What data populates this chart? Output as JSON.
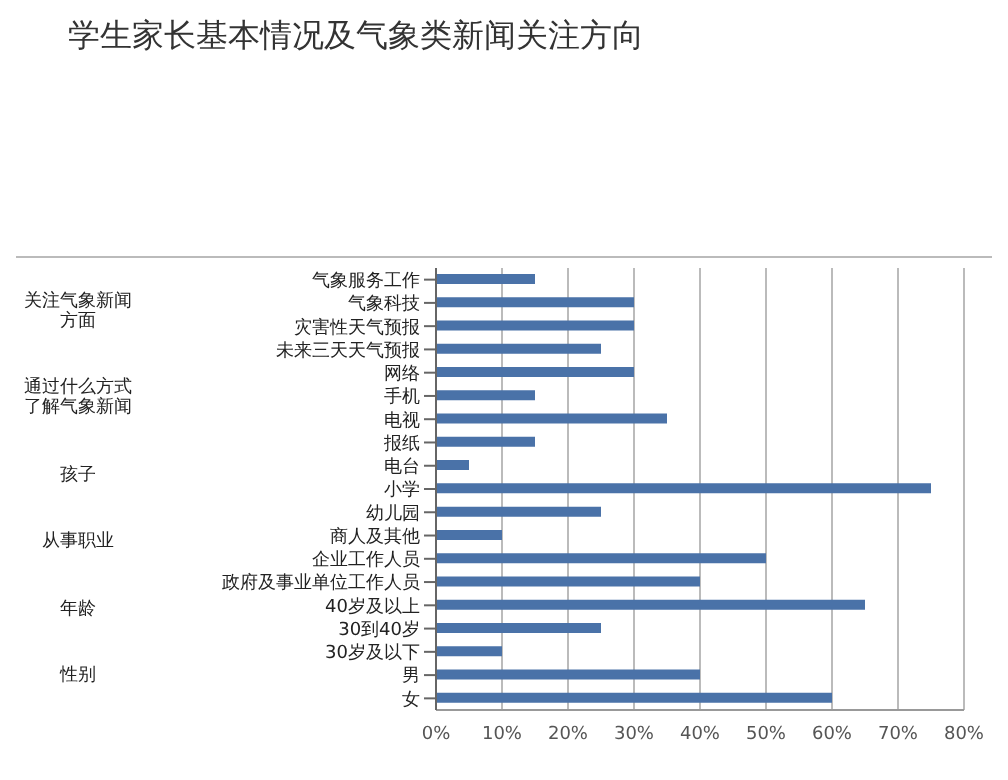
{
  "chart_data": {
    "type": "bar",
    "orientation": "horizontal",
    "title": "学生家长基本情况及气象类新闻关注方向",
    "categories": [
      "气象服务工作",
      "气象科技",
      "灾害性天气预报",
      "未来三天天气预报",
      "网络",
      "手机",
      "电视",
      "报纸",
      "电台",
      "小学",
      "幼儿园",
      "商人及其他",
      "企业工作人员",
      "政府及事业单位工作人员",
      "40岁及以上",
      "30到40岁",
      "30岁及以下",
      "男",
      "女"
    ],
    "values": [
      15,
      30,
      30,
      25,
      30,
      15,
      35,
      15,
      5,
      75,
      25,
      10,
      50,
      40,
      65,
      25,
      10,
      40,
      60
    ],
    "color": "#4a72a8",
    "xlim": [
      0,
      80
    ],
    "xticks": [
      {
        "value": 0,
        "label": "0%"
      },
      {
        "value": 10,
        "label": "10%"
      },
      {
        "value": 20,
        "label": "20%"
      },
      {
        "value": 30,
        "label": "30%"
      },
      {
        "value": 40,
        "label": "40%"
      },
      {
        "value": 50,
        "label": "50%"
      },
      {
        "value": 60,
        "label": "60%"
      },
      {
        "value": 70,
        "label": "70%"
      },
      {
        "value": 80,
        "label": "80%"
      }
    ],
    "grid": "x",
    "annotations": [
      "关注气象新闻方面",
      "通过什么方式了解气象新闻",
      "孩子",
      "从事职业",
      "年龄",
      "性别"
    ]
  }
}
